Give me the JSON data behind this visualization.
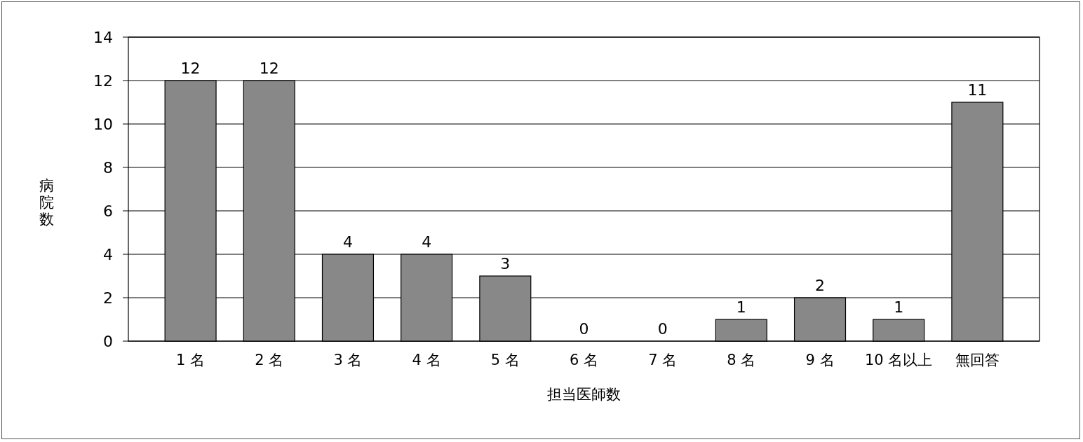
{
  "chart_data": {
    "type": "bar",
    "xlabel": "担当医師数",
    "ylabel": "病院数",
    "categories": [
      "1 名",
      "2 名",
      "3 名",
      "4 名",
      "5 名",
      "6 名",
      "7 名",
      "8 名",
      "9 名",
      "10 名以上",
      "無回答"
    ],
    "values": [
      12,
      12,
      4,
      4,
      3,
      0,
      0,
      1,
      2,
      1,
      11
    ],
    "color": "#888888",
    "ylim": [
      0,
      14
    ],
    "yticks": [
      0,
      2,
      4,
      6,
      8,
      10,
      12,
      14
    ],
    "grid": "y",
    "data_labels": true
  }
}
